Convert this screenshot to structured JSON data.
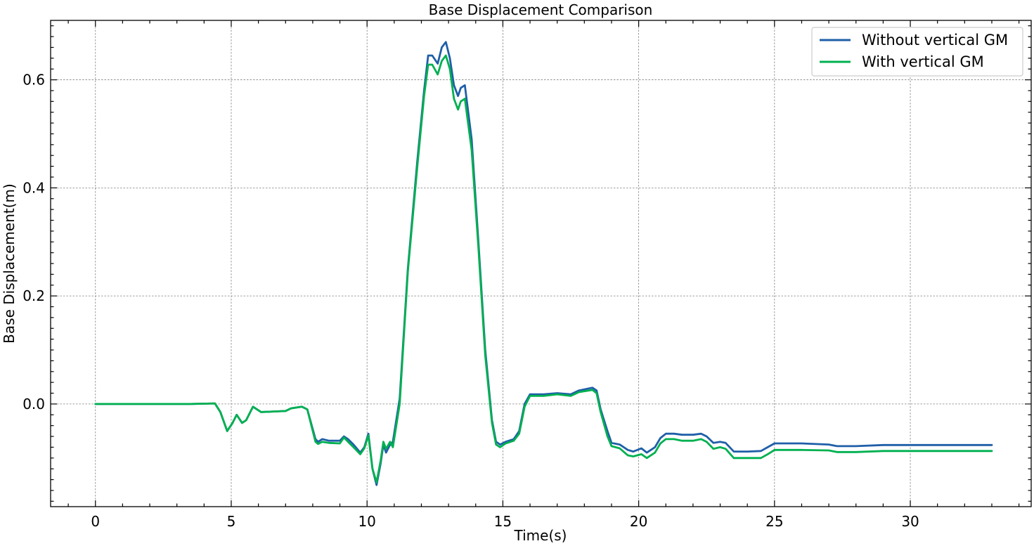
{
  "chart_data": {
    "type": "line",
    "title": "Base Displacement Comparison",
    "xlabel": "Time(s)",
    "ylabel": "Base Displacement(m)",
    "xlim": [
      -1.65,
      34.45
    ],
    "ylim": [
      -0.19,
      0.71
    ],
    "xticks": [
      0,
      5,
      10,
      15,
      20,
      25,
      30
    ],
    "xtick_labels": [
      "0",
      "5",
      "10",
      "15",
      "20",
      "25",
      "30"
    ],
    "yticks": [
      0.0,
      0.2,
      0.4,
      0.6
    ],
    "ytick_labels": [
      "0.0",
      "0.2",
      "0.4",
      "0.6"
    ],
    "grid": true,
    "legend_position": "top-right",
    "series": [
      {
        "name": "Without vertical GM",
        "color": "#1f5fa8",
        "points": [
          [
            0,
            0
          ],
          [
            3.5,
            0
          ],
          [
            4.4,
            0.001
          ],
          [
            4.6,
            -0.015
          ],
          [
            4.85,
            -0.05
          ],
          [
            5.05,
            -0.035
          ],
          [
            5.2,
            -0.02
          ],
          [
            5.4,
            -0.035
          ],
          [
            5.55,
            -0.03
          ],
          [
            5.8,
            -0.005
          ],
          [
            6.1,
            -0.015
          ],
          [
            7,
            -0.013
          ],
          [
            7.2,
            -0.008
          ],
          [
            7.6,
            -0.005
          ],
          [
            7.8,
            -0.01
          ],
          [
            8.1,
            -0.065
          ],
          [
            8.2,
            -0.07
          ],
          [
            8.35,
            -0.065
          ],
          [
            8.6,
            -0.068
          ],
          [
            9.0,
            -0.068
          ],
          [
            9.15,
            -0.06
          ],
          [
            9.3,
            -0.065
          ],
          [
            9.5,
            -0.075
          ],
          [
            9.75,
            -0.09
          ],
          [
            9.9,
            -0.08
          ],
          [
            10.05,
            -0.055
          ],
          [
            10.2,
            -0.12
          ],
          [
            10.35,
            -0.15
          ],
          [
            10.5,
            -0.11
          ],
          [
            10.6,
            -0.075
          ],
          [
            10.7,
            -0.09
          ],
          [
            10.85,
            -0.075
          ],
          [
            10.95,
            -0.07
          ],
          [
            11.2,
            0.01
          ],
          [
            11.5,
            0.25
          ],
          [
            11.85,
            0.45
          ],
          [
            12.1,
            0.58
          ],
          [
            12.25,
            0.645
          ],
          [
            12.4,
            0.645
          ],
          [
            12.6,
            0.63
          ],
          [
            12.75,
            0.66
          ],
          [
            12.9,
            0.67
          ],
          [
            13.05,
            0.64
          ],
          [
            13.2,
            0.59
          ],
          [
            13.35,
            0.57
          ],
          [
            13.45,
            0.585
          ],
          [
            13.6,
            0.59
          ],
          [
            13.85,
            0.49
          ],
          [
            14.1,
            0.3
          ],
          [
            14.35,
            0.1
          ],
          [
            14.6,
            -0.03
          ],
          [
            14.75,
            -0.07
          ],
          [
            14.9,
            -0.075
          ],
          [
            15.1,
            -0.07
          ],
          [
            15.4,
            -0.065
          ],
          [
            15.6,
            -0.05
          ],
          [
            15.8,
            0.0
          ],
          [
            16.0,
            0.018
          ],
          [
            16.5,
            0.018
          ],
          [
            17.0,
            0.02
          ],
          [
            17.5,
            0.018
          ],
          [
            17.8,
            0.025
          ],
          [
            18.3,
            0.03
          ],
          [
            18.45,
            0.025
          ],
          [
            18.6,
            -0.01
          ],
          [
            18.85,
            -0.05
          ],
          [
            19.0,
            -0.072
          ],
          [
            19.3,
            -0.075
          ],
          [
            19.6,
            -0.085
          ],
          [
            19.8,
            -0.088
          ],
          [
            20.1,
            -0.082
          ],
          [
            20.3,
            -0.09
          ],
          [
            20.6,
            -0.08
          ],
          [
            20.8,
            -0.063
          ],
          [
            21.0,
            -0.055
          ],
          [
            21.3,
            -0.055
          ],
          [
            21.6,
            -0.057
          ],
          [
            22.0,
            -0.057
          ],
          [
            22.3,
            -0.055
          ],
          [
            22.5,
            -0.06
          ],
          [
            22.75,
            -0.072
          ],
          [
            23.0,
            -0.07
          ],
          [
            23.2,
            -0.072
          ],
          [
            23.5,
            -0.088
          ],
          [
            24.0,
            -0.088
          ],
          [
            24.5,
            -0.087
          ],
          [
            24.75,
            -0.08
          ],
          [
            25.0,
            -0.073
          ],
          [
            25.5,
            -0.073
          ],
          [
            26.0,
            -0.073
          ],
          [
            27.0,
            -0.075
          ],
          [
            27.3,
            -0.078
          ],
          [
            28.0,
            -0.078
          ],
          [
            29.0,
            -0.076
          ],
          [
            30.0,
            -0.076
          ],
          [
            33.0,
            -0.076
          ]
        ]
      },
      {
        "name": "With vertical GM",
        "color": "#00b050",
        "points": [
          [
            0,
            0
          ],
          [
            3.5,
            0
          ],
          [
            4.4,
            0.001
          ],
          [
            4.6,
            -0.015
          ],
          [
            4.85,
            -0.05
          ],
          [
            5.05,
            -0.035
          ],
          [
            5.2,
            -0.02
          ],
          [
            5.4,
            -0.035
          ],
          [
            5.55,
            -0.03
          ],
          [
            5.8,
            -0.005
          ],
          [
            6.1,
            -0.015
          ],
          [
            7,
            -0.013
          ],
          [
            7.2,
            -0.008
          ],
          [
            7.6,
            -0.005
          ],
          [
            7.8,
            -0.01
          ],
          [
            8.1,
            -0.07
          ],
          [
            8.2,
            -0.074
          ],
          [
            8.35,
            -0.07
          ],
          [
            8.6,
            -0.072
          ],
          [
            9.0,
            -0.073
          ],
          [
            9.15,
            -0.062
          ],
          [
            9.3,
            -0.07
          ],
          [
            9.5,
            -0.08
          ],
          [
            9.75,
            -0.093
          ],
          [
            9.9,
            -0.082
          ],
          [
            10.05,
            -0.058
          ],
          [
            10.2,
            -0.12
          ],
          [
            10.35,
            -0.145
          ],
          [
            10.5,
            -0.105
          ],
          [
            10.6,
            -0.07
          ],
          [
            10.7,
            -0.083
          ],
          [
            10.85,
            -0.07
          ],
          [
            10.95,
            -0.08
          ],
          [
            11.2,
            0.0
          ],
          [
            11.5,
            0.245
          ],
          [
            11.85,
            0.44
          ],
          [
            12.1,
            0.57
          ],
          [
            12.25,
            0.628
          ],
          [
            12.4,
            0.628
          ],
          [
            12.6,
            0.61
          ],
          [
            12.75,
            0.635
          ],
          [
            12.9,
            0.645
          ],
          [
            13.05,
            0.62
          ],
          [
            13.2,
            0.565
          ],
          [
            13.35,
            0.545
          ],
          [
            13.45,
            0.56
          ],
          [
            13.6,
            0.565
          ],
          [
            13.85,
            0.47
          ],
          [
            14.1,
            0.29
          ],
          [
            14.35,
            0.09
          ],
          [
            14.6,
            -0.035
          ],
          [
            14.75,
            -0.075
          ],
          [
            14.9,
            -0.08
          ],
          [
            15.1,
            -0.073
          ],
          [
            15.4,
            -0.068
          ],
          [
            15.6,
            -0.055
          ],
          [
            15.8,
            -0.005
          ],
          [
            16.0,
            0.015
          ],
          [
            16.5,
            0.015
          ],
          [
            17.0,
            0.018
          ],
          [
            17.5,
            0.015
          ],
          [
            17.8,
            0.022
          ],
          [
            18.3,
            0.026
          ],
          [
            18.45,
            0.02
          ],
          [
            18.6,
            -0.015
          ],
          [
            18.85,
            -0.06
          ],
          [
            19.0,
            -0.078
          ],
          [
            19.3,
            -0.082
          ],
          [
            19.6,
            -0.095
          ],
          [
            19.8,
            -0.097
          ],
          [
            20.1,
            -0.093
          ],
          [
            20.3,
            -0.1
          ],
          [
            20.6,
            -0.09
          ],
          [
            20.8,
            -0.073
          ],
          [
            21.0,
            -0.065
          ],
          [
            21.3,
            -0.065
          ],
          [
            21.6,
            -0.068
          ],
          [
            22.0,
            -0.068
          ],
          [
            22.3,
            -0.065
          ],
          [
            22.5,
            -0.07
          ],
          [
            22.75,
            -0.083
          ],
          [
            23.0,
            -0.08
          ],
          [
            23.2,
            -0.083
          ],
          [
            23.5,
            -0.1
          ],
          [
            24.0,
            -0.1
          ],
          [
            24.5,
            -0.1
          ],
          [
            24.75,
            -0.093
          ],
          [
            25.0,
            -0.085
          ],
          [
            25.5,
            -0.085
          ],
          [
            26.0,
            -0.085
          ],
          [
            27.0,
            -0.086
          ],
          [
            27.3,
            -0.089
          ],
          [
            28.0,
            -0.089
          ],
          [
            29.0,
            -0.087
          ],
          [
            30.0,
            -0.087
          ],
          [
            33.0,
            -0.087
          ]
        ]
      }
    ]
  }
}
